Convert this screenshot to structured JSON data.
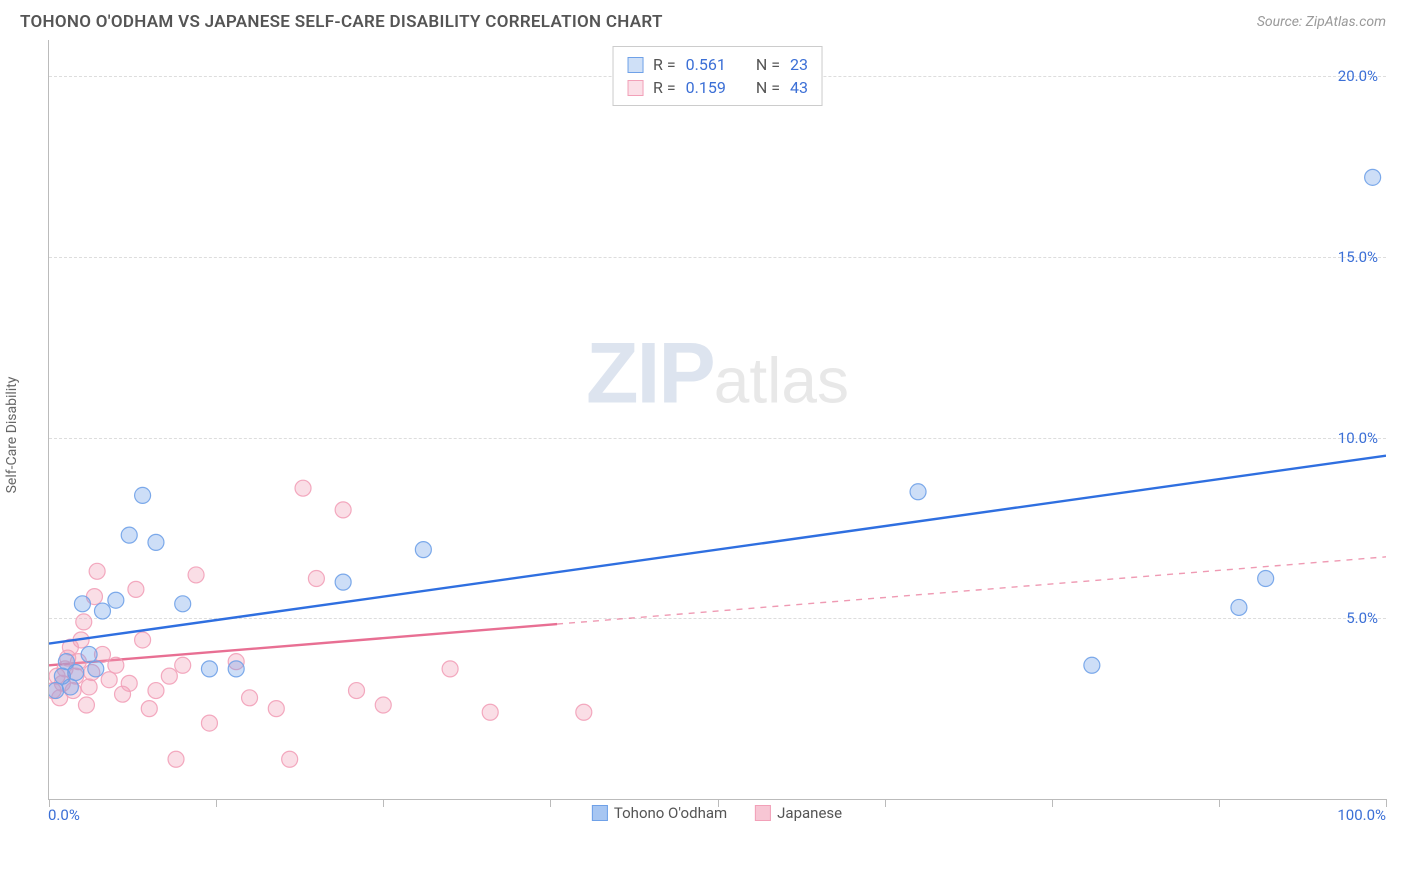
{
  "title": "TOHONO O'ODHAM VS JAPANESE SELF-CARE DISABILITY CORRELATION CHART",
  "source_prefix": "Source: ",
  "source_name": "ZipAtlas.com",
  "y_axis_label": "Self-Care Disability",
  "watermark": {
    "zip": "ZIP",
    "atlas": "atlas"
  },
  "chart": {
    "type": "scatter",
    "xlim": [
      0,
      100
    ],
    "ylim": [
      0,
      21
    ],
    "x_tick_label_min": "0.0%",
    "x_tick_label_max": "100.0%",
    "x_ticks_at": [
      0,
      12.5,
      25,
      37.5,
      50,
      62.5,
      75,
      87.5,
      100
    ],
    "y_gridlines": [
      5,
      10,
      15,
      20
    ],
    "y_tick_labels": [
      "5.0%",
      "10.0%",
      "15.0%",
      "20.0%"
    ],
    "background_color": "#ffffff",
    "grid_color": "#dddddd",
    "axis_color": "#bbbbbb",
    "tick_label_color": "#3b6fd6",
    "marker_radius": 8,
    "marker_fill_opacity": 0.35,
    "marker_stroke_opacity": 0.9,
    "marker_stroke_width": 1.2,
    "line_width": 2.4
  },
  "series": [
    {
      "name": "Tohono O'odham",
      "color": "#6fa1e8",
      "line_color": "#2f6fe0",
      "r_label": "R = ",
      "r_value": "0.561",
      "n_label": "N = ",
      "n_value": "23",
      "trend": {
        "x1": 0,
        "y1": 4.3,
        "x2": 100,
        "y2": 9.5,
        "solid_until_x": 100
      },
      "points": [
        [
          0.5,
          3.0
        ],
        [
          1,
          3.4
        ],
        [
          1.3,
          3.8
        ],
        [
          1.6,
          3.1
        ],
        [
          2,
          3.5
        ],
        [
          2.5,
          5.4
        ],
        [
          3,
          4.0
        ],
        [
          3.5,
          3.6
        ],
        [
          4,
          5.2
        ],
        [
          5,
          5.5
        ],
        [
          6,
          7.3
        ],
        [
          7,
          8.4
        ],
        [
          8,
          7.1
        ],
        [
          10,
          5.4
        ],
        [
          12,
          3.6
        ],
        [
          14,
          3.6
        ],
        [
          22,
          6.0
        ],
        [
          28,
          6.9
        ],
        [
          65,
          8.5
        ],
        [
          78,
          3.7
        ],
        [
          89,
          5.3
        ],
        [
          91,
          6.1
        ],
        [
          99,
          17.2
        ]
      ]
    },
    {
      "name": "Japanese",
      "color": "#f2a0b8",
      "line_color": "#e86f93",
      "r_label": "R = ",
      "r_value": "0.159",
      "n_label": "N = ",
      "n_value": "43",
      "trend": {
        "x1": 0,
        "y1": 3.7,
        "x2": 100,
        "y2": 6.7,
        "solid_until_x": 38
      },
      "points": [
        [
          0.3,
          3.0
        ],
        [
          0.6,
          3.4
        ],
        [
          0.8,
          2.8
        ],
        [
          1,
          3.2
        ],
        [
          1.2,
          3.6
        ],
        [
          1.4,
          3.9
        ],
        [
          1.6,
          4.2
        ],
        [
          1.8,
          3.0
        ],
        [
          2,
          3.4
        ],
        [
          2.2,
          3.8
        ],
        [
          2.4,
          4.4
        ],
        [
          2.6,
          4.9
        ],
        [
          2.8,
          2.6
        ],
        [
          3,
          3.1
        ],
        [
          3.2,
          3.5
        ],
        [
          3.4,
          5.6
        ],
        [
          3.6,
          6.3
        ],
        [
          4,
          4.0
        ],
        [
          4.5,
          3.3
        ],
        [
          5,
          3.7
        ],
        [
          5.5,
          2.9
        ],
        [
          6,
          3.2
        ],
        [
          6.5,
          5.8
        ],
        [
          7,
          4.4
        ],
        [
          7.5,
          2.5
        ],
        [
          8,
          3.0
        ],
        [
          9,
          3.4
        ],
        [
          9.5,
          1.1
        ],
        [
          10,
          3.7
        ],
        [
          11,
          6.2
        ],
        [
          12,
          2.1
        ],
        [
          14,
          3.8
        ],
        [
          15,
          2.8
        ],
        [
          17,
          2.5
        ],
        [
          18,
          1.1
        ],
        [
          19,
          8.6
        ],
        [
          20,
          6.1
        ],
        [
          22,
          8.0
        ],
        [
          23,
          3.0
        ],
        [
          25,
          2.6
        ],
        [
          30,
          3.6
        ],
        [
          33,
          2.4
        ],
        [
          40,
          2.4
        ]
      ]
    }
  ],
  "bottom_legend": [
    {
      "label": "Tohono O'odham",
      "fill": "#a7c6f2",
      "border": "#6fa1e8"
    },
    {
      "label": "Japanese",
      "fill": "#f7c6d4",
      "border": "#f2a0b8"
    }
  ]
}
